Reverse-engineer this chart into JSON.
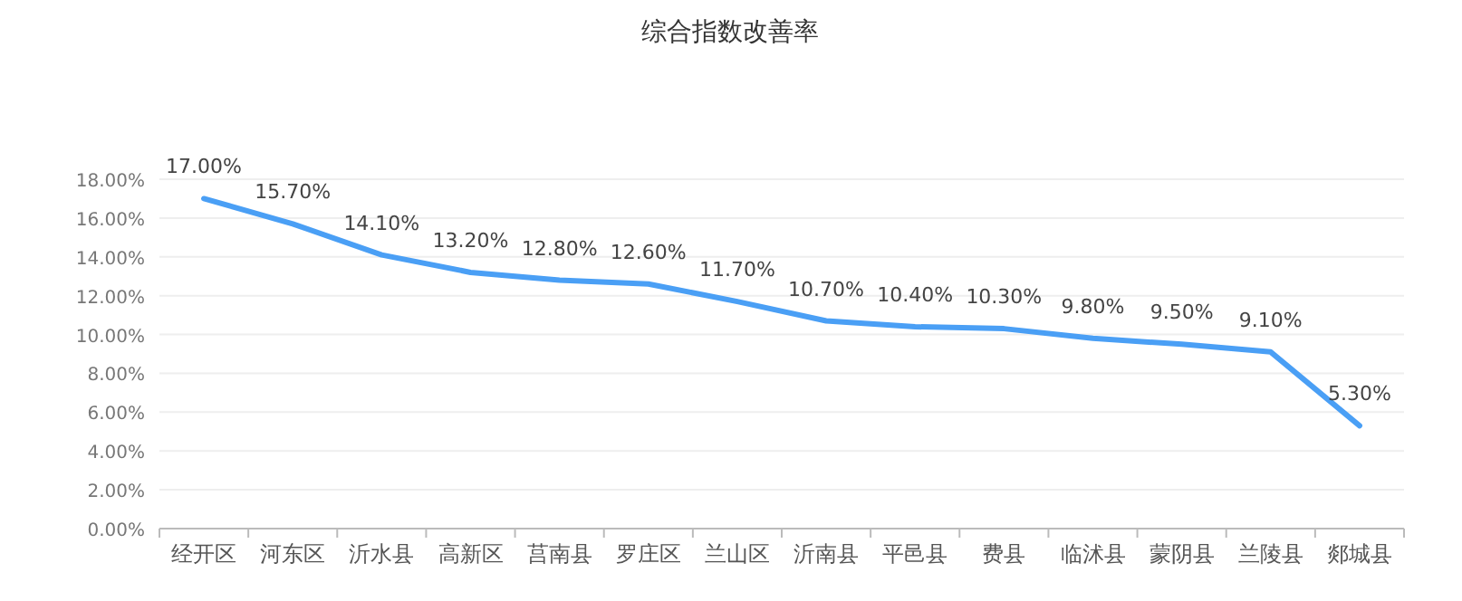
{
  "chart_data": {
    "type": "line",
    "title": "综合指数改善率",
    "categories": [
      "经开区",
      "河东区",
      "沂水县",
      "高新区",
      "莒南县",
      "罗庄区",
      "兰山区",
      "沂南县",
      "平邑县",
      "费县",
      "临沭县",
      "蒙阴县",
      "兰陵县",
      "郯城县"
    ],
    "series": [
      {
        "color": "#4a9ff5",
        "values": [
          17.0,
          15.7,
          14.1,
          13.2,
          12.8,
          12.6,
          11.7,
          10.7,
          10.4,
          10.3,
          9.8,
          9.5,
          9.1,
          5.3
        ],
        "value_labels": [
          "17.00%",
          "15.70%",
          "14.10%",
          "13.20%",
          "12.80%",
          "12.60%",
          "11.70%",
          "10.70%",
          "10.40%",
          "10.30%",
          "9.80%",
          "9.50%",
          "9.10%",
          "5.30%"
        ]
      }
    ],
    "ylim": [
      0,
      18
    ],
    "yticks": [
      {
        "value": 0,
        "label": "0.00%"
      },
      {
        "value": 2,
        "label": "2.00%"
      },
      {
        "value": 4,
        "label": "4.00%"
      },
      {
        "value": 6,
        "label": "6.00%"
      },
      {
        "value": 8,
        "label": "8.00%"
      },
      {
        "value": 10,
        "label": "10.00%"
      },
      {
        "value": 12,
        "label": "12.00%"
      },
      {
        "value": 14,
        "label": "14.00%"
      },
      {
        "value": 16,
        "label": "16.00%"
      },
      {
        "value": 18,
        "label": "18.00%"
      }
    ],
    "grid": "y",
    "marker": "none",
    "line_style": "solid"
  }
}
